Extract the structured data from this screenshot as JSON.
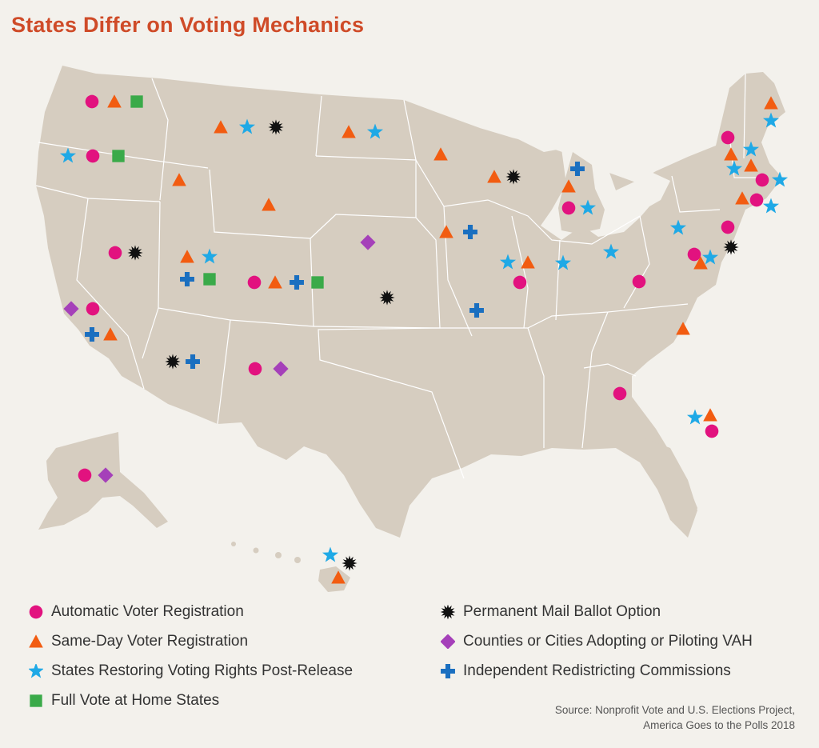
{
  "title": "States Differ on Voting Mechanics",
  "legend": [
    {
      "key": "avr",
      "label": "Automatic Voter Registration",
      "color": "#e2127f"
    },
    {
      "key": "sdr",
      "label": "Same-Day Voter Registration",
      "color": "#f25c11"
    },
    {
      "key": "rvr",
      "label": "States Restoring Voting Rights Post-Release",
      "color": "#1fa9e6"
    },
    {
      "key": "fvh",
      "label": "Full Vote at Home States",
      "color": "#3aaa49"
    },
    {
      "key": "pmb",
      "label": "Permanent Mail Ballot Option",
      "color": "#111111"
    },
    {
      "key": "vah",
      "label": "Counties or Cities Adopting or Piloting VAH",
      "color": "#a540b9"
    },
    {
      "key": "irc",
      "label": "Independent Redistricting Commissions",
      "color": "#1a6fc0"
    }
  ],
  "source": {
    "line1": "Source: Nonprofit Vote and U.S. Elections Project,",
    "line2": "America Goes to the Polls 2018"
  },
  "colors": {
    "land": "#d6cdc0",
    "border": "#ffffff",
    "background": "#f3f1ec",
    "title": "#cf4b28"
  }
}
